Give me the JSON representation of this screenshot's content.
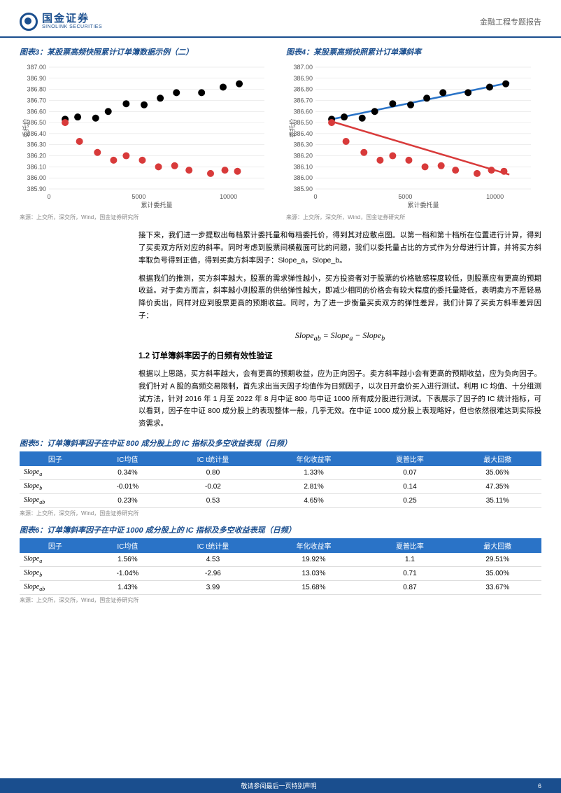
{
  "header": {
    "brand_cn": "国金证券",
    "brand_en": "SINOLINK SECURITIES",
    "right": "金融工程专题报告"
  },
  "fig3": {
    "title": "图表3：某股票高频快照累计订单簿数据示例（二）",
    "source": "来源：上交所，深交所，Wind，国金证券研究所",
    "xlabel": "累计委托量",
    "ylabel": "委托价",
    "type": "scatter",
    "xlim": [
      0,
      12000
    ],
    "ylim": [
      385.9,
      387.0
    ],
    "xticks": [
      0,
      5000,
      10000
    ],
    "yticks": [
      385.9,
      386.0,
      386.1,
      386.2,
      386.3,
      386.4,
      386.5,
      386.6,
      386.7,
      386.8,
      386.9,
      387.0
    ],
    "series": [
      {
        "color": "#000000",
        "marker": "circle",
        "size": 5,
        "pts": [
          [
            900,
            386.53
          ],
          [
            1600,
            386.55
          ],
          [
            2600,
            386.54
          ],
          [
            3300,
            386.6
          ],
          [
            4300,
            386.67
          ],
          [
            5300,
            386.66
          ],
          [
            6200,
            386.72
          ],
          [
            7100,
            386.77
          ],
          [
            8500,
            386.77
          ],
          [
            9700,
            386.82
          ],
          [
            10600,
            386.85
          ]
        ]
      },
      {
        "color": "#d83a3a",
        "marker": "circle",
        "size": 5,
        "pts": [
          [
            900,
            386.5
          ],
          [
            1700,
            386.33
          ],
          [
            2700,
            386.23
          ],
          [
            3600,
            386.16
          ],
          [
            4300,
            386.2
          ],
          [
            5200,
            386.16
          ],
          [
            6100,
            386.1
          ],
          [
            7000,
            386.11
          ],
          [
            7800,
            386.07
          ],
          [
            9000,
            386.04
          ],
          [
            9800,
            386.07
          ],
          [
            10500,
            386.06
          ]
        ]
      }
    ]
  },
  "fig4": {
    "title": "图表4：某股票高频快照累计订单薄斜率",
    "source": "来源：上交所，深交所，Wind，国金证券研究所",
    "xlabel": "累计委托量",
    "ylabel": "委托价",
    "type": "scatter",
    "xlim": [
      0,
      12000
    ],
    "ylim": [
      385.9,
      387.0
    ],
    "xticks": [
      0,
      5000,
      10000
    ],
    "yticks": [
      385.9,
      386.0,
      386.1,
      386.2,
      386.3,
      386.4,
      386.5,
      386.6,
      386.7,
      386.8,
      386.9,
      387.0
    ],
    "series": [
      {
        "color": "#000000",
        "marker": "circle",
        "size": 5,
        "pts": [
          [
            900,
            386.53
          ],
          [
            1600,
            386.55
          ],
          [
            2600,
            386.54
          ],
          [
            3300,
            386.6
          ],
          [
            4300,
            386.67
          ],
          [
            5300,
            386.66
          ],
          [
            6200,
            386.72
          ],
          [
            7100,
            386.77
          ],
          [
            8500,
            386.77
          ],
          [
            9700,
            386.82
          ],
          [
            10600,
            386.85
          ]
        ]
      },
      {
        "color": "#d83a3a",
        "marker": "circle",
        "size": 5,
        "pts": [
          [
            900,
            386.5
          ],
          [
            1700,
            386.33
          ],
          [
            2700,
            386.23
          ],
          [
            3600,
            386.16
          ],
          [
            4300,
            386.2
          ],
          [
            5200,
            386.16
          ],
          [
            6100,
            386.1
          ],
          [
            7000,
            386.11
          ],
          [
            7800,
            386.07
          ],
          [
            9000,
            386.04
          ],
          [
            9800,
            386.07
          ],
          [
            10500,
            386.06
          ]
        ]
      }
    ],
    "lines": [
      {
        "color": "#2a73c7",
        "width": 2.5,
        "p1": [
          900,
          386.53
        ],
        "p2": [
          10800,
          386.86
        ]
      },
      {
        "color": "#d83a3a",
        "width": 2.5,
        "p1": [
          900,
          386.51
        ],
        "p2": [
          10800,
          386.03
        ]
      }
    ]
  },
  "para1": "接下来，我们进一步提取出每档累计委托量和每档委托价，得到其对应散点图。以第一档和第十档所在位置进行计算，得到了买卖双方所对应的斜率。同时考虑到股票间横截面可比的问题，我们以委托量占比的方式作为分母进行计算，并将买方斜率取负号得到正值，得到买卖方斜率因子：Slope_a，Slope_b。",
  "para2": "根据我们的推测，买方斜率越大，股票的需求弹性越小，买方投资者对于股票的价格敏感程度较低，则股票应有更高的预期收益。对于卖方而言，斜率越小则股票的供给弹性越大，即减少相同的价格会有较大程度的委托量降低，表明卖方不愿轻易降价卖出，同样对应到股票更高的预期收益。同时，为了进一步衡量买卖双方的弹性差异，我们计算了买卖方斜率差异因子：",
  "formula": "Slope_ab = Slope_a − Slope_b",
  "sec12": "1.2 订单簿斜率因子的日频有效性验证",
  "para3": "根据以上思路，买方斜率越大，会有更高的预期收益，应为正向因子。卖方斜率越小会有更高的预期收益，应为负向因子。我们针对 A 股的高频交易限制，首先求出当天因子均值作为日频因子，以次日开盘价买入进行测试。利用 IC 均值、十分组测试方法，针对 2016 年 1 月至 2022 年 8 月中证 800 与中证 1000 所有成分股进行测试。下表展示了因子的 IC 统计指标，可以看到，因子在中证 800 成分股上的表现整体一般，几乎无效。在中证 1000 成分股上表现略好，但也依然很难达到实际投资需求。",
  "table5": {
    "title": "图表5：订单簿斜率因子在中证 800 成分股上的 IC 指标及多空收益表现（日频）",
    "source": "来源：上交所，深交所，Wind，国金证券研究所",
    "columns": [
      "因子",
      "IC均值",
      "IC t统计量",
      "年化收益率",
      "夏普比率",
      "最大回撤"
    ],
    "rows": [
      [
        "Slope_a",
        "0.34%",
        "0.80",
        "1.33%",
        "0.07",
        "35.06%"
      ],
      [
        "Slope_b",
        "-0.01%",
        "-0.02",
        "2.81%",
        "0.14",
        "47.35%"
      ],
      [
        "Slope_ab",
        "0.23%",
        "0.53",
        "4.65%",
        "0.25",
        "35.11%"
      ]
    ]
  },
  "table6": {
    "title": "图表6：订单簿斜率因子在中证 1000 成分股上的 IC 指标及多空收益表现（日频）",
    "source": "来源：上交所，深交所，Wind，国金证券研究所",
    "columns": [
      "因子",
      "IC均值",
      "IC t统计量",
      "年化收益率",
      "夏普比率",
      "最大回撤"
    ],
    "rows": [
      [
        "Slope_a",
        "1.56%",
        "4.53",
        "19.92%",
        "1.1",
        "29.51%"
      ],
      [
        "Slope_b",
        "-1.04%",
        "-2.96",
        "13.03%",
        "0.71",
        "35.00%"
      ],
      [
        "Slope_ab",
        "1.43%",
        "3.99",
        "15.68%",
        "0.87",
        "33.67%"
      ]
    ]
  },
  "footer": {
    "text": "敬请参阅最后一页特别声明",
    "page": "6"
  }
}
